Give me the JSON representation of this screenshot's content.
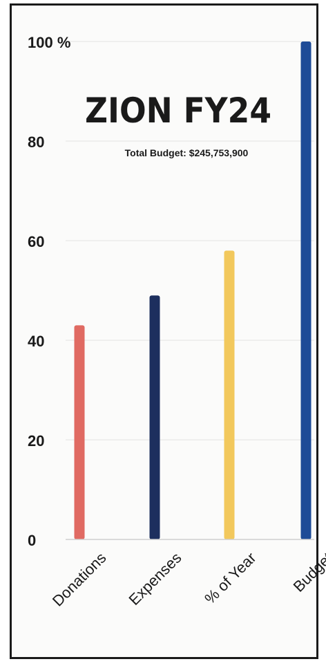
{
  "chart_data": {
    "type": "bar",
    "title": "ZION FY24",
    "subtitle": "Total Budget: $245,753,900",
    "categories": [
      "Donations",
      "Expenses",
      "% of Year",
      "Budget"
    ],
    "values": [
      43,
      49,
      58,
      100
    ],
    "colors": [
      "#e06a62",
      "#1d2f5e",
      "#f2c85c",
      "#1e4b97"
    ],
    "y_ticks": [
      "0",
      "20",
      "40",
      "60",
      "80",
      "100 %"
    ],
    "ylim": [
      0,
      100
    ],
    "grid": true,
    "xlabel": "",
    "ylabel": ""
  }
}
